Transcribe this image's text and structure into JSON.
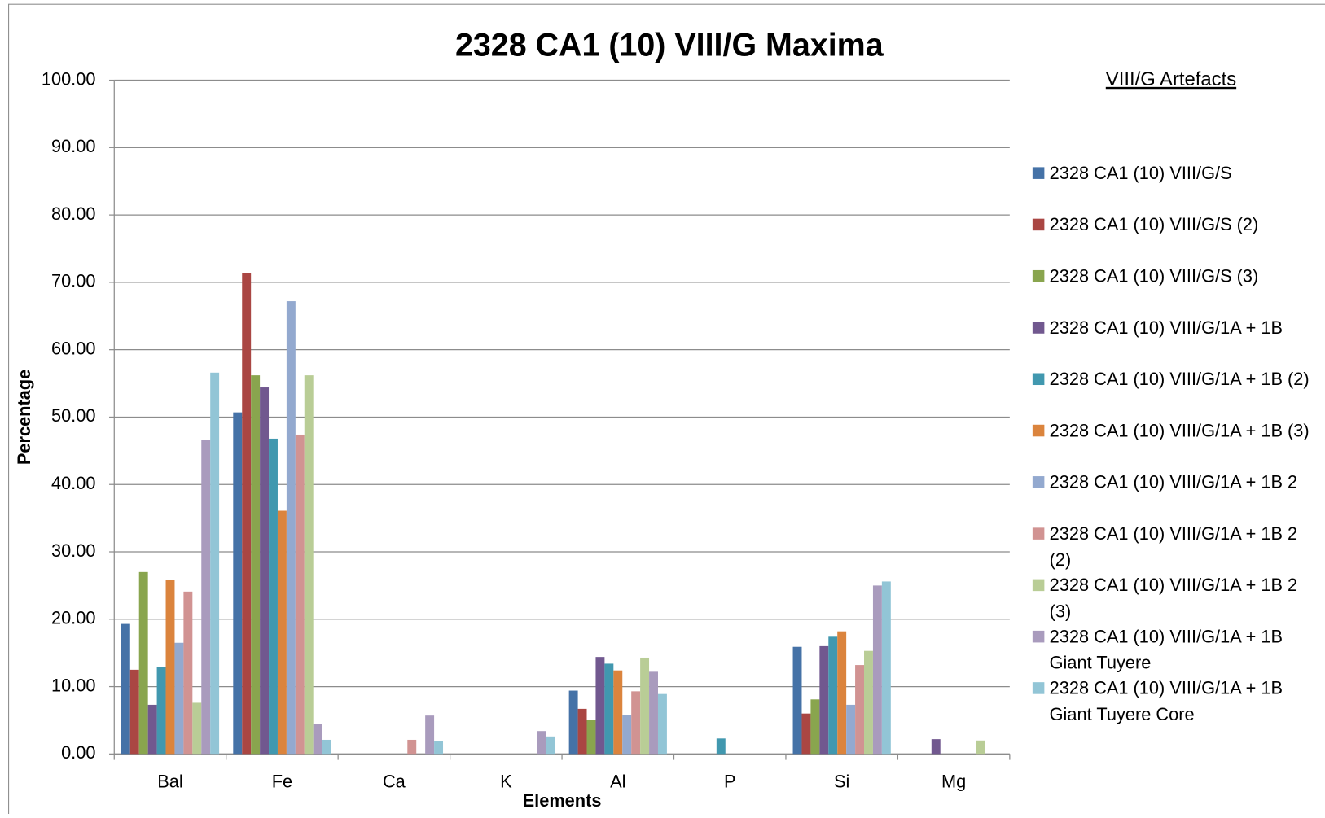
{
  "chart_data": {
    "type": "bar",
    "title": "2328 CA1 (10) VIII/G Maxima",
    "x_label": "Elements",
    "y_label": "Percentage",
    "legend_title": "VIII/G Artefacts",
    "categories": [
      "Bal",
      "Fe",
      "Ca",
      "K",
      "Al",
      "P",
      "Si",
      "Mg"
    ],
    "series": [
      {
        "name": "2328 CA1 (10) VIII/G/S",
        "color": "#4572a7",
        "values": [
          19.3,
          50.7,
          0,
          0,
          9.4,
          0,
          15.9,
          0
        ]
      },
      {
        "name": "2328 CA1 (10) VIII/G/S (2)",
        "color": "#aa4643",
        "values": [
          12.5,
          71.4,
          0,
          0,
          6.7,
          0,
          6.0,
          0
        ]
      },
      {
        "name": "2328 CA1 (10) VIII/G/S (3)",
        "color": "#89a54e",
        "values": [
          27.0,
          56.2,
          0,
          0,
          5.1,
          0,
          8.1,
          0
        ]
      },
      {
        "name": "2328 CA1 (10) VIII/G/1A + 1B",
        "color": "#71588f",
        "values": [
          7.3,
          54.4,
          0,
          0,
          14.4,
          0,
          16.0,
          2.2
        ]
      },
      {
        "name": "2328 CA1 (10) VIII/G/1A + 1B (2)",
        "color": "#4198af",
        "values": [
          12.9,
          46.8,
          0,
          0,
          13.4,
          2.3,
          17.4,
          0
        ]
      },
      {
        "name": "2328 CA1 (10) VIII/G/1A + 1B (3)",
        "color": "#db843d",
        "values": [
          25.8,
          36.1,
          0,
          0,
          12.4,
          0,
          18.2,
          0
        ]
      },
      {
        "name": "2328 CA1 (10) VIII/G/1A + 1B 2",
        "color": "#93a9cf",
        "values": [
          16.5,
          67.2,
          0,
          0,
          5.8,
          0,
          7.3,
          0
        ]
      },
      {
        "name": "2328 CA1 (10) VIII/G/1A + 1B 2 (2)",
        "color": "#d19392",
        "values": [
          24.1,
          47.4,
          2.1,
          0,
          9.3,
          0,
          13.2,
          0
        ]
      },
      {
        "name": "2328 CA1 (10) VIII/G/1A + 1B 2 (3)",
        "color": "#b9cd96",
        "values": [
          7.6,
          56.2,
          0,
          0,
          14.3,
          0,
          15.3,
          2.0
        ]
      },
      {
        "name": "2328 CA1 (10) VIII/G/1A + 1B Giant Tuyere",
        "color": "#a99bbd",
        "values": [
          46.6,
          4.5,
          5.7,
          3.4,
          12.2,
          0,
          25.0,
          0
        ]
      },
      {
        "name": "2328 CA1 (10) VIII/G/1A + 1B Giant Tuyere  Core",
        "color": "#92c5d6",
        "values": [
          56.6,
          2.1,
          1.9,
          2.6,
          8.9,
          0,
          25.6,
          0
        ]
      }
    ],
    "ylim": [
      0,
      100
    ],
    "yticks": [
      {
        "value": 0,
        "label": "0.00"
      },
      {
        "value": 10,
        "label": "10.00"
      },
      {
        "value": 20,
        "label": "20.00"
      },
      {
        "value": 30,
        "label": "30.00"
      },
      {
        "value": 40,
        "label": "40.00"
      },
      {
        "value": 50,
        "label": "50.00"
      },
      {
        "value": 60,
        "label": "60.00"
      },
      {
        "value": 70,
        "label": "70.00"
      },
      {
        "value": 80,
        "label": "80.00"
      },
      {
        "value": 90,
        "label": "90.00"
      },
      {
        "value": 100,
        "label": "100.00"
      }
    ],
    "grid": true
  }
}
